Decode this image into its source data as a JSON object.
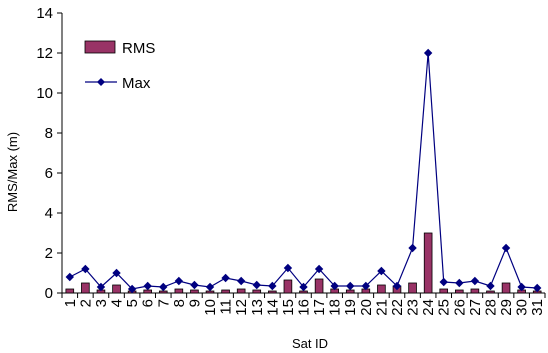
{
  "chart_data": {
    "type": "bar",
    "xlabel": "Sat ID",
    "ylabel": "RMS/Max (m)",
    "ylim": [
      0,
      14
    ],
    "yticks": [
      0,
      2,
      4,
      6,
      8,
      10,
      12,
      14
    ],
    "grid": false,
    "legend_position": "top-left",
    "categories": [
      "1",
      "2",
      "3",
      "4",
      "5",
      "6",
      "7",
      "8",
      "9",
      "10",
      "11",
      "12",
      "13",
      "14",
      "15",
      "16",
      "17",
      "18",
      "19",
      "20",
      "21",
      "22",
      "23",
      "24",
      "25",
      "26",
      "27",
      "28",
      "29",
      "30",
      "31"
    ],
    "series": [
      {
        "name": "RMS",
        "type": "bar",
        "color": "#993366",
        "values": [
          0.2,
          0.5,
          0.15,
          0.4,
          0.1,
          0.15,
          0.1,
          0.2,
          0.15,
          0.1,
          0.15,
          0.2,
          0.15,
          0.1,
          0.65,
          0.1,
          0.7,
          0.2,
          0.15,
          0.2,
          0.4,
          0.35,
          0.5,
          3.0,
          0.2,
          0.15,
          0.2,
          0.1,
          0.5,
          0.15,
          0.1
        ]
      },
      {
        "name": "Max",
        "type": "line",
        "color": "#000080",
        "values": [
          0.8,
          1.2,
          0.3,
          1.0,
          0.2,
          0.35,
          0.3,
          0.6,
          0.4,
          0.3,
          0.75,
          0.6,
          0.4,
          0.35,
          1.25,
          0.3,
          1.2,
          0.35,
          0.35,
          0.35,
          1.1,
          0.35,
          2.25,
          12.0,
          0.55,
          0.5,
          0.6,
          0.35,
          2.25,
          0.3,
          0.25
        ]
      }
    ]
  }
}
